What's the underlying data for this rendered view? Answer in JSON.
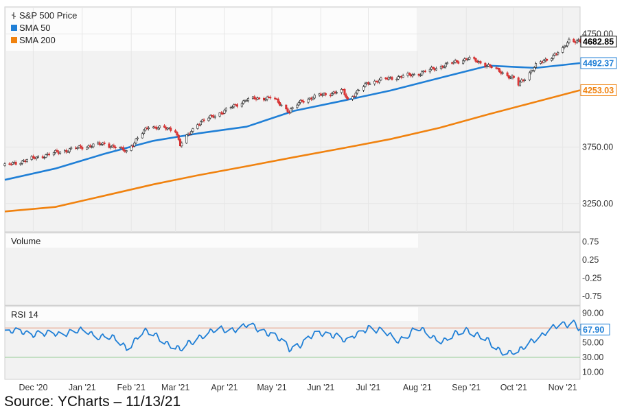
{
  "source": "Source: YCharts – 11/13/21",
  "chart_data": [
    {
      "type": "candlestick",
      "panel": "price",
      "legend": [
        {
          "label": "S&P 500 Price",
          "color": "#000000",
          "icon": "candlestick-icon"
        },
        {
          "label": "SMA 50",
          "color": "#1f7fd6",
          "icon": "square-icon"
        },
        {
          "label": "SMA 200",
          "color": "#f0820f",
          "icon": "square-icon"
        }
      ],
      "x_labels": [
        "Dec '20",
        "Jan '21",
        "Feb '21",
        "Mar '21",
        "Apr '21",
        "May '21",
        "Jun '21",
        "Jul '21",
        "Aug '21",
        "Sep '21",
        "Oct '21",
        "Nov '21"
      ],
      "x_label_dates": [
        "2020-12-01",
        "2021-01-01",
        "2021-02-01",
        "2021-03-01",
        "2021-04-01",
        "2021-05-01",
        "2021-06-01",
        "2021-07-01",
        "2021-08-01",
        "2021-09-01",
        "2021-10-01",
        "2021-11-01"
      ],
      "x_range": [
        "2020-11-13",
        "2021-11-12"
      ],
      "y_ticks": [
        "4750.00",
        "3750.00",
        "3250.00"
      ],
      "y_tick_values": [
        4750,
        3750,
        3250
      ],
      "ylim": [
        3000,
        4990
      ],
      "grid": true,
      "price_series": {
        "name": "S&P 500 Price",
        "dates": [
          "2020-11-13",
          "2020-12-01",
          "2020-12-15",
          "2021-01-01",
          "2021-01-15",
          "2021-01-29",
          "2021-02-12",
          "2021-03-01",
          "2021-03-04",
          "2021-03-15",
          "2021-04-01",
          "2021-04-15",
          "2021-05-01",
          "2021-05-12",
          "2021-05-20",
          "2021-06-01",
          "2021-06-15",
          "2021-06-18",
          "2021-07-01",
          "2021-07-15",
          "2021-08-01",
          "2021-08-15",
          "2021-09-02",
          "2021-09-15",
          "2021-10-01",
          "2021-10-04",
          "2021-10-15",
          "2021-11-01",
          "2021-11-05",
          "2021-11-12"
        ],
        "values": [
          3585,
          3650,
          3700,
          3750,
          3780,
          3715,
          3935,
          3900,
          3768,
          3960,
          4070,
          4170,
          4190,
          4065,
          4160,
          4210,
          4245,
          4170,
          4320,
          4360,
          4395,
          4460,
          4535,
          4470,
          4355,
          4300,
          4470,
          4610,
          4700,
          4682.85
        ]
      },
      "sma50": {
        "name": "SMA 50",
        "color": "#1f7fd6",
        "dates": [
          "2020-11-13",
          "2020-12-15",
          "2021-01-15",
          "2021-02-15",
          "2021-03-15",
          "2021-04-15",
          "2021-05-15",
          "2021-06-15",
          "2021-07-15",
          "2021-08-15",
          "2021-09-15",
          "2021-10-15",
          "2021-11-12"
        ],
        "values": [
          3460,
          3560,
          3690,
          3805,
          3870,
          3930,
          4070,
          4160,
          4250,
          4360,
          4470,
          4450,
          4492.37
        ]
      },
      "sma200": {
        "name": "SMA 200",
        "color": "#f0820f",
        "dates": [
          "2020-11-13",
          "2020-12-15",
          "2021-01-15",
          "2021-02-15",
          "2021-03-15",
          "2021-04-15",
          "2021-05-15",
          "2021-06-15",
          "2021-07-15",
          "2021-08-15",
          "2021-09-15",
          "2021-10-15",
          "2021-11-12"
        ],
        "values": [
          3180,
          3220,
          3320,
          3420,
          3500,
          3580,
          3660,
          3740,
          3820,
          3920,
          4040,
          4150,
          4253.03
        ]
      },
      "last_values": [
        {
          "label": "4682.85",
          "value": 4682.85,
          "color": "#000000"
        },
        {
          "label": "4492.37",
          "value": 4492.37,
          "color": "#1f7fd6"
        },
        {
          "label": "4253.03",
          "value": 4253.03,
          "color": "#f0820f"
        }
      ]
    },
    {
      "type": "bar",
      "panel": "volume",
      "title": "Volume",
      "y_ticks": [
        "0.75",
        "0.25",
        "-0.25",
        "-0.75"
      ],
      "y_tick_values": [
        0.75,
        0.25,
        -0.25,
        -0.75
      ],
      "ylim": [
        -1,
        1
      ],
      "values": []
    },
    {
      "type": "line",
      "panel": "rsi",
      "title": "RSI 14",
      "y_ticks": [
        "90.00",
        "50.00",
        "30.00",
        "10.00"
      ],
      "y_tick_values": [
        90,
        50,
        30,
        10
      ],
      "ylim": [
        0,
        100
      ],
      "overbought": 70,
      "oversold": 30,
      "color": "#1f7fd6",
      "dates": [
        "2020-11-13",
        "2020-11-25",
        "2020-12-08",
        "2020-12-21",
        "2021-01-05",
        "2021-01-18",
        "2021-01-29",
        "2021-02-08",
        "2021-02-19",
        "2021-03-04",
        "2021-03-15",
        "2021-04-01",
        "2021-04-15",
        "2021-05-01",
        "2021-05-12",
        "2021-05-25",
        "2021-06-10",
        "2021-06-18",
        "2021-07-01",
        "2021-07-19",
        "2021-08-01",
        "2021-08-19",
        "2021-09-02",
        "2021-09-20",
        "2021-10-04",
        "2021-10-15",
        "2021-11-01",
        "2021-11-08",
        "2021-11-12"
      ],
      "values": [
        62,
        66,
        60,
        65,
        64,
        57,
        44,
        64,
        58,
        38,
        59,
        68,
        72,
        64,
        40,
        58,
        63,
        50,
        73,
        54,
        68,
        52,
        70,
        42,
        35,
        58,
        74,
        80,
        67.9
      ],
      "last_value": {
        "label": "67.90",
        "value": 67.9
      }
    }
  ]
}
